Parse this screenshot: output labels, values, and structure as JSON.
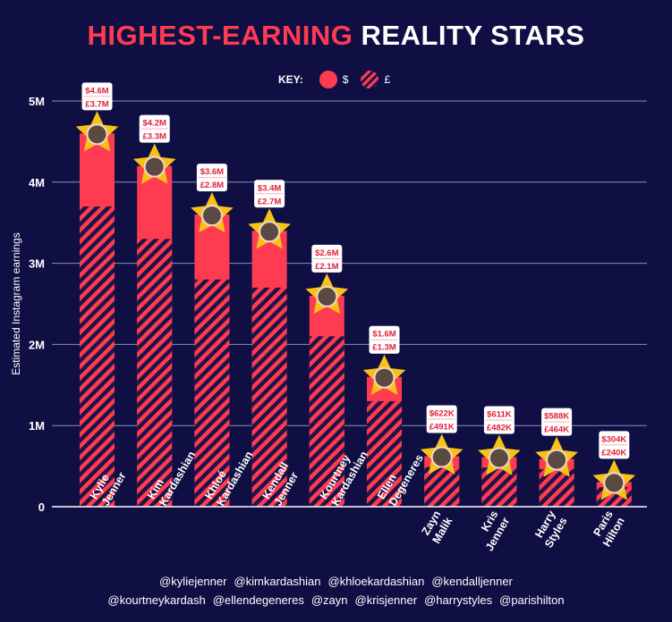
{
  "title": {
    "accent": "HIGHEST-EARNING",
    "rest": "REALITY STARS"
  },
  "key": {
    "label": "KEY:",
    "usd": "$",
    "gbp": "£"
  },
  "colors": {
    "background": "#0f0f44",
    "bar": "#ff3b52",
    "hatch_gap": "#1e1446",
    "star": "#f6c21a",
    "label_text": "#e0203a"
  },
  "chart_data": {
    "type": "bar",
    "ylabel": "Estimated Instagram earnings",
    "ylim": [
      0,
      5000000
    ],
    "yticks": [
      {
        "value": 0,
        "label": "0"
      },
      {
        "value": 1000000,
        "label": "1M"
      },
      {
        "value": 2000000,
        "label": "2M"
      },
      {
        "value": 3000000,
        "label": "3M"
      },
      {
        "value": 4000000,
        "label": "4M"
      },
      {
        "value": 5000000,
        "label": "5M"
      }
    ],
    "grid": true,
    "categories": [
      {
        "name": "Kylie Jenner",
        "lines": [
          "Kylie",
          "Jenner"
        ],
        "label_inside": true
      },
      {
        "name": "Kim Kardashian",
        "lines": [
          "Kim",
          "Kardashian"
        ],
        "label_inside": true
      },
      {
        "name": "Khloé Kardashian",
        "lines": [
          "Khloé",
          "Kardashian"
        ],
        "label_inside": true
      },
      {
        "name": "Kendall Jenner",
        "lines": [
          "Kendall",
          "Jenner"
        ],
        "label_inside": true
      },
      {
        "name": "Kourtney Kardashian",
        "lines": [
          "Kourtney",
          "Kardashian"
        ],
        "label_inside": true
      },
      {
        "name": "Ellen Degeneres",
        "lines": [
          "Ellen",
          "Degeneres"
        ],
        "label_inside": true
      },
      {
        "name": "Zayn Malik",
        "lines": [
          "Zayn",
          "Malik"
        ],
        "label_inside": false
      },
      {
        "name": "Kris Jenner",
        "lines": [
          "Kris",
          "Jenner"
        ],
        "label_inside": false
      },
      {
        "name": "Harry Styles",
        "lines": [
          "Harry",
          "Styles"
        ],
        "label_inside": false
      },
      {
        "name": "Paris Hilton",
        "lines": [
          "Paris",
          "Hilton"
        ],
        "label_inside": false
      }
    ],
    "series": [
      {
        "name": "$",
        "values": [
          4600000,
          4200000,
          3600000,
          3400000,
          2600000,
          1600000,
          622000,
          611000,
          588000,
          304000
        ],
        "labels": [
          "$4.6M",
          "$4.2M",
          "$3.6M",
          "$3.4M",
          "$2.6M",
          "$1.6M",
          "$622K",
          "$611K",
          "$588K",
          "$304K"
        ]
      },
      {
        "name": "£",
        "values": [
          3700000,
          3300000,
          2800000,
          2700000,
          2100000,
          1300000,
          491000,
          482000,
          464000,
          240000
        ],
        "labels": [
          "£3.7M",
          "£3.3M",
          "£2.8M",
          "£2.7M",
          "£2.1M",
          "£1.3M",
          "£491K",
          "£482K",
          "£464K",
          "£240K"
        ]
      }
    ]
  },
  "handles": {
    "row1": [
      "@kyliejenner",
      "@kimkardashian",
      "@khloekardashian",
      "@kendalljenner"
    ],
    "row2": [
      "@kourtneykardash",
      "@ellendegeneres",
      "@zayn",
      "@krisjenner",
      "@harrystyles",
      "@parishilton"
    ]
  }
}
